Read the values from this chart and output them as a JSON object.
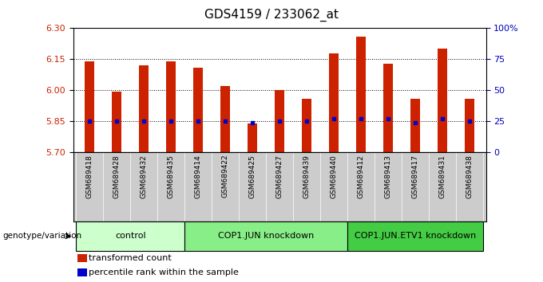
{
  "title": "GDS4159 / 233062_at",
  "samples": [
    "GSM689418",
    "GSM689428",
    "GSM689432",
    "GSM689435",
    "GSM689414",
    "GSM689422",
    "GSM689425",
    "GSM689427",
    "GSM689439",
    "GSM689440",
    "GSM689412",
    "GSM689413",
    "GSM689417",
    "GSM689431",
    "GSM689438"
  ],
  "groups": [
    {
      "label": "control",
      "indices": [
        0,
        1,
        2,
        3
      ],
      "color": "#ccffcc"
    },
    {
      "label": "COP1.JUN knockdown",
      "indices": [
        4,
        5,
        6,
        7,
        8,
        9
      ],
      "color": "#99ee99"
    },
    {
      "label": "COP1.JUN.ETV1 knockdown",
      "indices": [
        10,
        11,
        12,
        13,
        14
      ],
      "color": "#44cc44"
    }
  ],
  "bar_values": [
    6.14,
    5.995,
    6.12,
    6.14,
    6.11,
    6.02,
    5.84,
    6.0,
    5.96,
    6.18,
    6.26,
    6.13,
    5.96,
    6.2,
    5.96
  ],
  "dot_values": [
    5.85,
    5.85,
    5.85,
    5.85,
    5.85,
    5.85,
    5.845,
    5.85,
    5.85,
    5.862,
    5.862,
    5.862,
    5.845,
    5.862,
    5.85
  ],
  "y_min": 5.7,
  "y_max": 6.3,
  "y_ticks_left": [
    5.7,
    5.85,
    6.0,
    6.15,
    6.3
  ],
  "y_ticks_right_pct": [
    0,
    25,
    50,
    75,
    100
  ],
  "bar_color": "#cc2200",
  "dot_color": "#0000cc",
  "bar_bottom": 5.7,
  "legend_red": "transformed count",
  "legend_blue": "percentile rank within the sample",
  "genotype_label": "genotype/variation",
  "background_color": "#ffffff",
  "left_tick_color": "#cc2200",
  "right_tick_color": "#0000bb",
  "sample_bg_color": "#cccccc",
  "grid_lines": [
    5.85,
    6.0,
    6.15
  ],
  "bar_width": 0.35
}
